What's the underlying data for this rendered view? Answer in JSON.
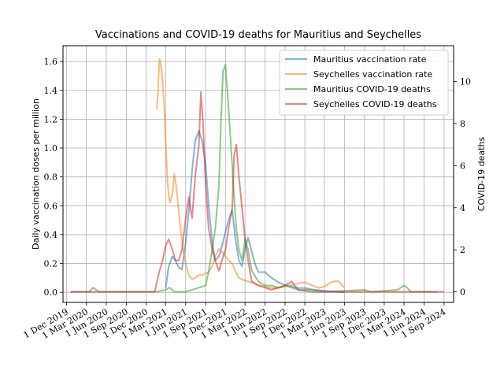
{
  "chart_data": {
    "type": "line",
    "title": "Vaccinations and COVID-19 deaths for Mauritius and Seychelles",
    "ylabel_left": "Daily vaccination doses per million",
    "ylabel_right": "COVID-19 deaths",
    "grid": true,
    "legend_placement": "top-right",
    "xlim": [
      "2019-11-15",
      "2024-10-15"
    ],
    "ylim_left": [
      -0.07,
      1.71
    ],
    "ylim_right": [
      -0.5,
      11.7
    ],
    "x_tick_labels": [
      "1 Dec 2019",
      "1 Mar 2020",
      "1 Jun 2020",
      "1 Sep 2020",
      "1 Dec 2020",
      "1 Mar 2021",
      "1 Jun 2021",
      "1 Sep 2021",
      "1 Dec 2021",
      "1 Mar 2022",
      "1 Jun 2022",
      "1 Sep 2022",
      "1 Dec 2022",
      "1 Mar 2023",
      "1 Jun 2023",
      "1 Sep 2023",
      "1 Dec 2023",
      "1 Mar 2024",
      "1 Jun 2024",
      "1 Sep 2024"
    ],
    "x_ticks": [
      "2019-12-01",
      "2020-03-01",
      "2020-06-01",
      "2020-09-01",
      "2020-12-01",
      "2021-03-01",
      "2021-06-01",
      "2021-09-01",
      "2021-12-01",
      "2022-03-01",
      "2022-06-01",
      "2022-09-01",
      "2022-12-01",
      "2023-03-01",
      "2023-06-01",
      "2023-09-01",
      "2023-12-01",
      "2024-03-01",
      "2024-06-01",
      "2024-09-01"
    ],
    "y_left_ticks": [
      0.0,
      0.2,
      0.4,
      0.6,
      0.8,
      1.0,
      1.2,
      1.4,
      1.6
    ],
    "y_left_tick_labels": [
      "0.0",
      "0.2",
      "0.4",
      "0.6",
      "0.8",
      "1.0",
      "1.2",
      "1.4",
      "1.6"
    ],
    "y_right_ticks": [
      0,
      2,
      4,
      6,
      8,
      10
    ],
    "y_right_tick_labels": [
      "0",
      "2",
      "4",
      "6",
      "8",
      "10"
    ],
    "series": [
      {
        "name": "Mauritius vaccination rate",
        "axis": "left",
        "color": "#1f77b4",
        "points": [
          [
            "2021-03-01",
            0.03
          ],
          [
            "2021-03-15",
            0.18
          ],
          [
            "2021-04-01",
            0.25
          ],
          [
            "2021-04-15",
            0.22
          ],
          [
            "2021-05-01",
            0.17
          ],
          [
            "2021-05-15",
            0.16
          ],
          [
            "2021-06-01",
            0.35
          ],
          [
            "2021-06-15",
            0.55
          ],
          [
            "2021-07-01",
            0.85
          ],
          [
            "2021-07-15",
            1.05
          ],
          [
            "2021-08-01",
            1.12
          ],
          [
            "2021-08-15",
            1.05
          ],
          [
            "2021-09-01",
            0.88
          ],
          [
            "2021-09-15",
            0.6
          ],
          [
            "2021-10-01",
            0.35
          ],
          [
            "2021-10-15",
            0.22
          ],
          [
            "2021-11-01",
            0.25
          ],
          [
            "2021-11-15",
            0.32
          ],
          [
            "2021-12-01",
            0.42
          ],
          [
            "2021-12-15",
            0.5
          ],
          [
            "2022-01-01",
            0.57
          ],
          [
            "2022-01-15",
            0.38
          ],
          [
            "2022-02-01",
            0.22
          ],
          [
            "2022-02-15",
            0.18
          ],
          [
            "2022-03-01",
            0.3
          ],
          [
            "2022-03-15",
            0.38
          ],
          [
            "2022-04-01",
            0.28
          ],
          [
            "2022-04-15",
            0.2
          ],
          [
            "2022-05-01",
            0.14
          ],
          [
            "2022-06-01",
            0.14
          ],
          [
            "2022-06-15",
            0.12
          ],
          [
            "2022-07-01",
            0.1
          ],
          [
            "2022-08-01",
            0.07
          ],
          [
            "2022-09-01",
            0.05
          ],
          [
            "2022-10-01",
            0.04
          ],
          [
            "2022-11-01",
            0.03
          ],
          [
            "2022-12-01",
            0.03
          ],
          [
            "2023-01-01",
            0.02
          ],
          [
            "2023-03-01",
            0.01
          ],
          [
            "2023-06-01",
            0.0
          ]
        ]
      },
      {
        "name": "Seychelles vaccination rate",
        "axis": "left",
        "color": "#ff7f0e",
        "points": [
          [
            "2021-01-20",
            1.27
          ],
          [
            "2021-02-01",
            1.62
          ],
          [
            "2021-02-10",
            1.55
          ],
          [
            "2021-02-20",
            1.35
          ],
          [
            "2021-03-01",
            1.05
          ],
          [
            "2021-03-10",
            0.75
          ],
          [
            "2021-03-20",
            0.62
          ],
          [
            "2021-04-01",
            0.68
          ],
          [
            "2021-04-10",
            0.82
          ],
          [
            "2021-04-20",
            0.72
          ],
          [
            "2021-05-01",
            0.55
          ],
          [
            "2021-05-10",
            0.42
          ],
          [
            "2021-05-20",
            0.3
          ],
          [
            "2021-06-01",
            0.2
          ],
          [
            "2021-06-15",
            0.12
          ],
          [
            "2021-07-01",
            0.09
          ],
          [
            "2021-07-15",
            0.1
          ],
          [
            "2021-08-01",
            0.12
          ],
          [
            "2021-08-15",
            0.12
          ],
          [
            "2021-09-01",
            0.13
          ],
          [
            "2021-09-15",
            0.14
          ],
          [
            "2021-10-01",
            0.18
          ],
          [
            "2021-10-15",
            0.25
          ],
          [
            "2021-11-01",
            0.3
          ],
          [
            "2021-11-15",
            0.28
          ],
          [
            "2021-12-01",
            0.25
          ],
          [
            "2021-12-15",
            0.22
          ],
          [
            "2022-01-01",
            0.2
          ],
          [
            "2022-01-15",
            0.15
          ],
          [
            "2022-02-01",
            0.1
          ],
          [
            "2022-03-01",
            0.08
          ],
          [
            "2022-04-01",
            0.07
          ],
          [
            "2022-05-01",
            0.05
          ],
          [
            "2022-06-01",
            0.04
          ],
          [
            "2022-07-01",
            0.03
          ],
          [
            "2022-08-01",
            0.03
          ],
          [
            "2022-09-01",
            0.04
          ],
          [
            "2022-10-01",
            0.05
          ],
          [
            "2022-11-01",
            0.06
          ],
          [
            "2022-12-01",
            0.07
          ],
          [
            "2023-01-01",
            0.05
          ],
          [
            "2023-02-01",
            0.03
          ],
          [
            "2023-03-01",
            0.04
          ],
          [
            "2023-04-01",
            0.07
          ],
          [
            "2023-05-01",
            0.08
          ],
          [
            "2023-05-15",
            0.06
          ],
          [
            "2023-06-01",
            0.03
          ]
        ]
      },
      {
        "name": "Mauritius COVID-19 deaths",
        "axis": "right",
        "color": "#2ca02c",
        "points": [
          [
            "2019-12-20",
            0
          ],
          [
            "2020-03-15",
            0
          ],
          [
            "2020-04-01",
            0.2
          ],
          [
            "2020-04-15",
            0.1
          ],
          [
            "2020-05-01",
            0
          ],
          [
            "2021-01-15",
            0
          ],
          [
            "2021-03-01",
            0.1
          ],
          [
            "2021-03-20",
            0.2
          ],
          [
            "2021-04-10",
            0
          ],
          [
            "2021-06-01",
            0
          ],
          [
            "2021-07-01",
            0.1
          ],
          [
            "2021-08-01",
            0.2
          ],
          [
            "2021-09-01",
            0.3
          ],
          [
            "2021-09-15",
            1.0
          ],
          [
            "2021-10-01",
            2.0
          ],
          [
            "2021-10-15",
            3.0
          ],
          [
            "2021-11-01",
            5.0
          ],
          [
            "2021-11-10",
            8.0
          ],
          [
            "2021-11-20",
            10.5
          ],
          [
            "2021-12-01",
            10.8
          ],
          [
            "2021-12-10",
            9.5
          ],
          [
            "2021-12-20",
            8.0
          ],
          [
            "2022-01-01",
            6.0
          ],
          [
            "2022-01-10",
            4.5
          ],
          [
            "2022-01-20",
            3.0
          ],
          [
            "2022-02-01",
            2.0
          ],
          [
            "2022-02-15",
            1.5
          ],
          [
            "2022-03-01",
            2.5
          ],
          [
            "2022-03-15",
            2.0
          ],
          [
            "2022-04-01",
            1.0
          ],
          [
            "2022-05-01",
            0.5
          ],
          [
            "2022-06-01",
            0.3
          ],
          [
            "2022-07-01",
            0.3
          ],
          [
            "2022-08-01",
            0.2
          ],
          [
            "2022-09-01",
            0.3
          ],
          [
            "2022-10-01",
            0.2
          ],
          [
            "2022-11-01",
            0.1
          ],
          [
            "2023-01-01",
            0.1
          ],
          [
            "2023-03-01",
            0
          ],
          [
            "2023-09-01",
            0.1
          ],
          [
            "2023-10-01",
            0
          ],
          [
            "2024-02-01",
            0.1
          ],
          [
            "2024-03-01",
            0.3
          ],
          [
            "2024-03-15",
            0.2
          ],
          [
            "2024-04-01",
            0
          ],
          [
            "2024-08-01",
            0
          ]
        ]
      },
      {
        "name": "Seychelles COVID-19 deaths",
        "axis": "right",
        "color": "#d62728",
        "points": [
          [
            "2019-12-20",
            0
          ],
          [
            "2021-01-10",
            0
          ],
          [
            "2021-01-20",
            0.5
          ],
          [
            "2021-02-01",
            1.0
          ],
          [
            "2021-02-15",
            1.5
          ],
          [
            "2021-03-01",
            2.2
          ],
          [
            "2021-03-15",
            2.5
          ],
          [
            "2021-04-01",
            2.0
          ],
          [
            "2021-04-15",
            1.5
          ],
          [
            "2021-05-01",
            1.5
          ],
          [
            "2021-05-15",
            2.0
          ],
          [
            "2021-06-01",
            3.5
          ],
          [
            "2021-06-15",
            4.5
          ],
          [
            "2021-07-01",
            3.5
          ],
          [
            "2021-07-15",
            5.5
          ],
          [
            "2021-08-01",
            7.0
          ],
          [
            "2021-08-10",
            9.5
          ],
          [
            "2021-08-20",
            8.0
          ],
          [
            "2021-09-01",
            5.0
          ],
          [
            "2021-09-15",
            3.0
          ],
          [
            "2021-10-01",
            2.0
          ],
          [
            "2021-10-15",
            1.5
          ],
          [
            "2021-11-01",
            1.0
          ],
          [
            "2021-11-15",
            1.5
          ],
          [
            "2021-12-01",
            2.0
          ],
          [
            "2021-12-15",
            3.0
          ],
          [
            "2022-01-01",
            4.0
          ],
          [
            "2022-01-10",
            6.5
          ],
          [
            "2022-01-20",
            7.0
          ],
          [
            "2022-02-01",
            5.5
          ],
          [
            "2022-02-15",
            4.0
          ],
          [
            "2022-03-01",
            2.5
          ],
          [
            "2022-03-15",
            1.5
          ],
          [
            "2022-04-01",
            0.5
          ],
          [
            "2022-05-01",
            0.3
          ],
          [
            "2022-06-01",
            0.2
          ],
          [
            "2022-07-01",
            0.1
          ],
          [
            "2022-08-01",
            0.2
          ],
          [
            "2022-09-01",
            0.3
          ],
          [
            "2022-10-01",
            0.5
          ],
          [
            "2022-10-15",
            0.3
          ],
          [
            "2022-11-01",
            0.1
          ],
          [
            "2023-01-01",
            0
          ],
          [
            "2024-09-01",
            0
          ]
        ]
      }
    ]
  }
}
